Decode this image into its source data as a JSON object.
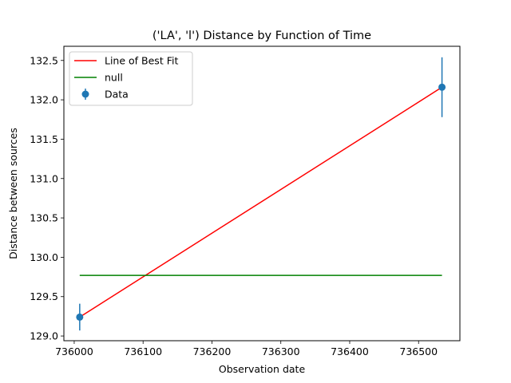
{
  "chart_data": {
    "type": "scatter",
    "title": "('LA', 'l') Distance by Function of Time",
    "xlabel": "Observation date",
    "ylabel": "Distance between sources",
    "xlim": [
      735985,
      736560
    ],
    "ylim": [
      128.94,
      132.68
    ],
    "x_ticks": [
      736000,
      736100,
      736200,
      736300,
      736400,
      736500
    ],
    "y_ticks": [
      129.0,
      129.5,
      130.0,
      130.5,
      131.0,
      131.5,
      132.0,
      132.5
    ],
    "x_tick_labels": [
      "736000",
      "736100",
      "736200",
      "736300",
      "736400",
      "736500"
    ],
    "y_tick_labels": [
      "129.0",
      "129.5",
      "130.0",
      "130.5",
      "131.0",
      "131.5",
      "132.0",
      "132.5"
    ],
    "grid": false,
    "legend_position": "upper-left",
    "series": [
      {
        "name": "Line of Best Fit",
        "kind": "line",
        "color": "#ff0000",
        "x": [
          736008,
          736534
        ],
        "y": [
          129.24,
          132.16
        ]
      },
      {
        "name": "null",
        "kind": "line",
        "color": "#008000",
        "x": [
          736008,
          736534
        ],
        "y": [
          129.77,
          129.77
        ]
      },
      {
        "name": "Data",
        "kind": "errorbar",
        "color": "#1f77b4",
        "x": [
          736008,
          736534
        ],
        "y": [
          129.24,
          132.16
        ],
        "yerr": [
          0.17,
          0.38
        ]
      }
    ]
  }
}
